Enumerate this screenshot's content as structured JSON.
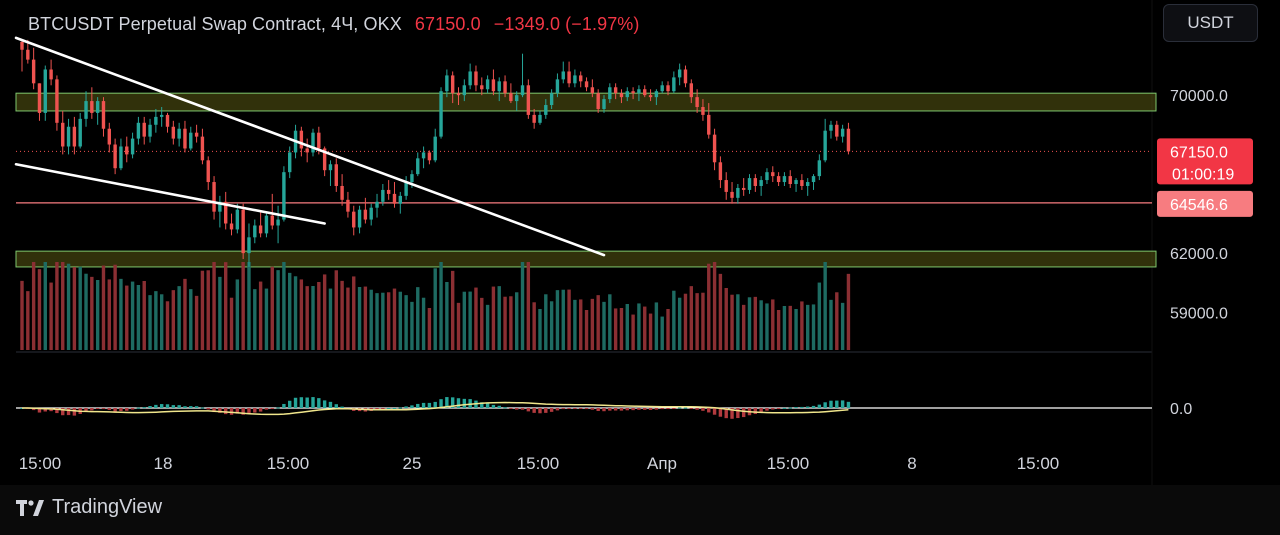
{
  "header": {
    "symbol": "BTCUSDT Perpetual Swap Contract, 4Ч, OKX",
    "price": "67150.0",
    "change": "−1349.0 (−1.97%)"
  },
  "currency_button": "USDT",
  "branding": {
    "name": "TradingView",
    "logo_icon": "tradingview-logo-icon"
  },
  "colors": {
    "up": "#26a69a",
    "down": "#ef5350",
    "accent_red": "#f23645",
    "zone_fill": "#5a5a14",
    "zone_border": "#7ec86e",
    "signal": "#f0e68c"
  },
  "chart_data": {
    "type": "candlestick",
    "interval": "4Ч",
    "y_axis": {
      "range": [
        57600,
        73300
      ],
      "tick_labels": [
        "70000.0",
        "62000.0",
        "59000.0"
      ]
    },
    "x_axis": {
      "tick_labels": [
        "15:00",
        "18",
        "15:00",
        "25",
        "15:00",
        "Апр",
        "15:00",
        "8",
        "15:00"
      ]
    },
    "price_labels": {
      "last_price": "67150.0",
      "countdown": "01:00:19",
      "horizontal_line": "64546.6"
    },
    "horizontal_line_value": 64546.6,
    "zones": [
      {
        "from": 69200,
        "to": 70100
      },
      {
        "from": 61300,
        "to": 62100
      }
    ],
    "trendlines": [
      {
        "from": {
          "index": 0,
          "price": 72900
        },
        "to": {
          "index": 100,
          "price": 61900
        }
      },
      {
        "from": {
          "index": 0,
          "price": 66500
        },
        "to": {
          "index": 52,
          "price": 63500
        }
      }
    ],
    "oscillator": {
      "zero_label": "0.0"
    },
    "candles": [
      [
        72700,
        72800,
        71200,
        72300
      ],
      [
        72300,
        72800,
        71600,
        71800
      ],
      [
        71800,
        72400,
        70300,
        70600
      ],
      [
        70600,
        70600,
        68700,
        69100
      ],
      [
        69100,
        71500,
        68700,
        71300
      ],
      [
        71300,
        71800,
        70500,
        70800
      ],
      [
        70800,
        71000,
        68200,
        68600
      ],
      [
        68600,
        69200,
        67000,
        67400
      ],
      [
        67400,
        68800,
        67000,
        68400
      ],
      [
        68400,
        68900,
        67000,
        67400
      ],
      [
        67400,
        69100,
        67300,
        68800
      ],
      [
        68800,
        70200,
        68400,
        69700
      ],
      [
        69700,
        70400,
        68800,
        69100
      ],
      [
        69100,
        69900,
        68500,
        69700
      ],
      [
        69700,
        69900,
        67900,
        68300
      ],
      [
        68300,
        68600,
        67100,
        67500
      ],
      [
        67500,
        67800,
        66000,
        66300
      ],
      [
        66300,
        67800,
        66200,
        67400
      ],
      [
        67400,
        67900,
        66600,
        67000
      ],
      [
        67000,
        68100,
        66800,
        67800
      ],
      [
        67800,
        68900,
        67500,
        68600
      ],
      [
        68600,
        68900,
        67500,
        67900
      ],
      [
        67900,
        68800,
        67600,
        68500
      ],
      [
        68500,
        69300,
        68100,
        68900
      ],
      [
        68900,
        69400,
        68400,
        69000
      ],
      [
        69000,
        69100,
        68100,
        68400
      ],
      [
        68400,
        68700,
        67500,
        67800
      ],
      [
        67800,
        68600,
        67400,
        68300
      ],
      [
        68300,
        68700,
        67100,
        67300
      ],
      [
        67300,
        68400,
        67200,
        68100
      ],
      [
        68100,
        68500,
        67600,
        67900
      ],
      [
        67900,
        68300,
        66500,
        66700
      ],
      [
        66700,
        66900,
        65200,
        65600
      ],
      [
        65600,
        65900,
        63700,
        64100
      ],
      [
        64100,
        64900,
        63300,
        64600
      ],
      [
        64600,
        65100,
        63200,
        63500
      ],
      [
        63500,
        64000,
        62900,
        63200
      ],
      [
        63200,
        64500,
        63000,
        64200
      ],
      [
        64200,
        64500,
        61700,
        62000
      ],
      [
        62000,
        63500,
        61300,
        62800
      ],
      [
        62800,
        63700,
        62500,
        63400
      ],
      [
        63400,
        64100,
        62800,
        63000
      ],
      [
        63000,
        64100,
        62800,
        63900
      ],
      [
        63900,
        65000,
        63200,
        63400
      ],
      [
        63400,
        64400,
        62500,
        63700
      ],
      [
        63700,
        66400,
        63600,
        66100
      ],
      [
        66100,
        67400,
        65800,
        67100
      ],
      [
        67100,
        68500,
        66800,
        68200
      ],
      [
        68200,
        68400,
        66900,
        67300
      ],
      [
        67300,
        67800,
        66600,
        67100
      ],
      [
        67100,
        68300,
        66900,
        68100
      ],
      [
        68100,
        68400,
        67000,
        67300
      ],
      [
        67300,
        67400,
        65900,
        66200
      ],
      [
        66200,
        66700,
        65400,
        66500
      ],
      [
        66500,
        66800,
        65100,
        65400
      ],
      [
        65400,
        66000,
        64400,
        64700
      ],
      [
        64700,
        65100,
        63800,
        64100
      ],
      [
        64100,
        64400,
        62900,
        63300
      ],
      [
        63300,
        64400,
        63000,
        64200
      ],
      [
        64200,
        64800,
        63500,
        63700
      ],
      [
        63700,
        64500,
        63400,
        64300
      ],
      [
        64300,
        65000,
        63800,
        64600
      ],
      [
        64600,
        65500,
        64400,
        65200
      ],
      [
        65200,
        65700,
        64700,
        65000
      ],
      [
        65000,
        65600,
        64300,
        64500
      ],
      [
        64500,
        65100,
        64000,
        64900
      ],
      [
        64900,
        65900,
        64700,
        65600
      ],
      [
        65600,
        66200,
        65300,
        66000
      ],
      [
        66000,
        67100,
        65900,
        66800
      ],
      [
        66800,
        67400,
        66300,
        67100
      ],
      [
        67100,
        67200,
        66500,
        66700
      ],
      [
        66700,
        68300,
        66600,
        67900
      ],
      [
        67900,
        70400,
        67800,
        70200
      ],
      [
        70200,
        71300,
        69900,
        71000
      ],
      [
        71000,
        71200,
        69600,
        70100
      ],
      [
        70100,
        70400,
        69500,
        70000
      ],
      [
        70000,
        70800,
        69700,
        70500
      ],
      [
        70500,
        71600,
        70300,
        71200
      ],
      [
        71200,
        71500,
        70200,
        70500
      ],
      [
        70500,
        70900,
        70000,
        70300
      ],
      [
        70300,
        71000,
        70100,
        70800
      ],
      [
        70800,
        71300,
        70000,
        70200
      ],
      [
        70200,
        70900,
        69700,
        70700
      ],
      [
        70700,
        71000,
        69900,
        70100
      ],
      [
        70100,
        70600,
        69600,
        69700
      ],
      [
        69700,
        70200,
        69200,
        70000
      ],
      [
        70000,
        72100,
        69900,
        70500
      ],
      [
        70500,
        70800,
        68800,
        69000
      ],
      [
        69000,
        69300,
        68300,
        68600
      ],
      [
        68600,
        69200,
        68500,
        69000
      ],
      [
        69000,
        69800,
        68800,
        69500
      ],
      [
        69500,
        70300,
        69300,
        70100
      ],
      [
        70100,
        71100,
        69900,
        70800
      ],
      [
        70800,
        71700,
        70600,
        71200
      ],
      [
        71200,
        71700,
        70400,
        70600
      ],
      [
        70600,
        71300,
        70400,
        71000
      ],
      [
        71000,
        71200,
        70400,
        70700
      ],
      [
        70700,
        70900,
        70200,
        70400
      ],
      [
        70400,
        70800,
        69900,
        70100
      ],
      [
        70100,
        70300,
        69100,
        69300
      ],
      [
        69300,
        70000,
        69100,
        69800
      ],
      [
        69800,
        70600,
        69600,
        70400
      ],
      [
        70400,
        70600,
        69800,
        70100
      ],
      [
        70100,
        70300,
        69600,
        69900
      ],
      [
        69900,
        70400,
        69700,
        70200
      ],
      [
        70200,
        70400,
        69800,
        70100
      ],
      [
        70100,
        70500,
        69700,
        70300
      ],
      [
        70300,
        70500,
        69900,
        70000
      ],
      [
        70000,
        70300,
        69700,
        69900
      ],
      [
        69900,
        70300,
        69500,
        70200
      ],
      [
        70200,
        70700,
        70100,
        70500
      ],
      [
        70500,
        70700,
        70000,
        70200
      ],
      [
        70200,
        71200,
        70100,
        70900
      ],
      [
        70900,
        71600,
        70500,
        71300
      ],
      [
        71300,
        71500,
        70400,
        70600
      ],
      [
        70600,
        70800,
        69600,
        69900
      ],
      [
        69900,
        70300,
        69100,
        69400
      ],
      [
        69400,
        69800,
        68700,
        69000
      ],
      [
        69000,
        69600,
        67800,
        68000
      ],
      [
        68000,
        68300,
        66200,
        66600
      ],
      [
        66600,
        66900,
        65300,
        65700
      ],
      [
        65700,
        66100,
        64700,
        65100
      ],
      [
        65100,
        65600,
        64500,
        64800
      ],
      [
        64800,
        65500,
        64500,
        65300
      ],
      [
        65300,
        65800,
        64900,
        65200
      ],
      [
        65200,
        66000,
        65000,
        65800
      ],
      [
        65800,
        66000,
        65100,
        65400
      ],
      [
        65400,
        65900,
        64900,
        65700
      ],
      [
        65700,
        66300,
        65500,
        66100
      ],
      [
        66100,
        66400,
        65600,
        65900
      ],
      [
        65900,
        66100,
        65400,
        65600
      ],
      [
        65600,
        66100,
        65400,
        65900
      ],
      [
        65900,
        66200,
        65300,
        65500
      ],
      [
        65500,
        65800,
        65100,
        65700
      ],
      [
        65700,
        66000,
        65200,
        65400
      ],
      [
        65400,
        65800,
        64900,
        65600
      ],
      [
        65600,
        66000,
        65200,
        65900
      ],
      [
        65900,
        67000,
        65700,
        66700
      ],
      [
        66700,
        68800,
        66600,
        68200
      ],
      [
        68200,
        68700,
        67800,
        68500
      ],
      [
        68500,
        68700,
        67700,
        67900
      ],
      [
        67900,
        68500,
        67600,
        68300
      ],
      [
        68300,
        68600,
        67000,
        67150
      ]
    ]
  }
}
